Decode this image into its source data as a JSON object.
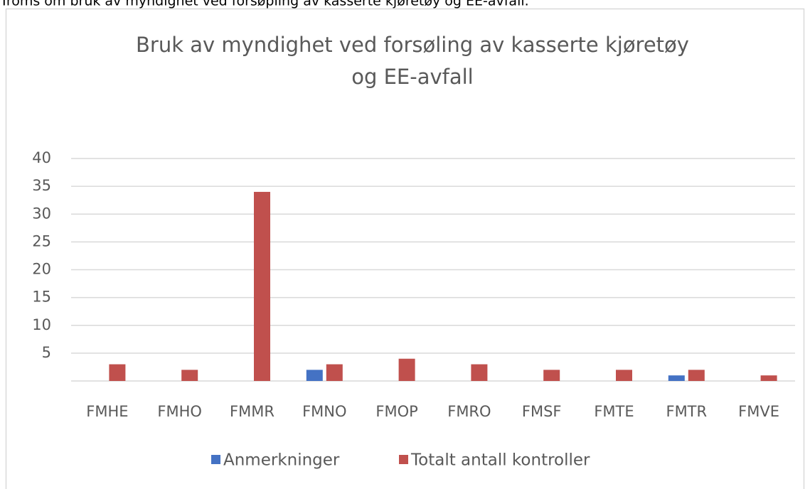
{
  "caption": "Troms om bruk av myndighet ved forsøpling av kasserte kjøretøy og EE-avfall.",
  "chart_data": {
    "type": "bar",
    "title": [
      "Bruk av myndighet ved forsøling av kasserte kjøretøy",
      "og EE-avfall"
    ],
    "categories": [
      "FMHE",
      "FMHO",
      "FMMR",
      "FMNO",
      "FMOP",
      "FMRO",
      "FMSF",
      "FMTE",
      "FMTR",
      "FMVE"
    ],
    "series": [
      {
        "name": "Anmerkninger",
        "color": "#4472c4",
        "values": [
          0,
          0,
          0,
          2,
          0,
          0,
          0,
          0,
          1,
          0
        ]
      },
      {
        "name": "Totalt antall kontroller",
        "color": "#c0504d",
        "values": [
          3,
          2,
          34,
          3,
          4,
          3,
          2,
          2,
          2,
          1
        ]
      }
    ],
    "ylim": [
      0,
      40
    ],
    "yticks": [
      5,
      10,
      15,
      20,
      25,
      30,
      35,
      40
    ],
    "grid": true,
    "legend": "bottom"
  }
}
